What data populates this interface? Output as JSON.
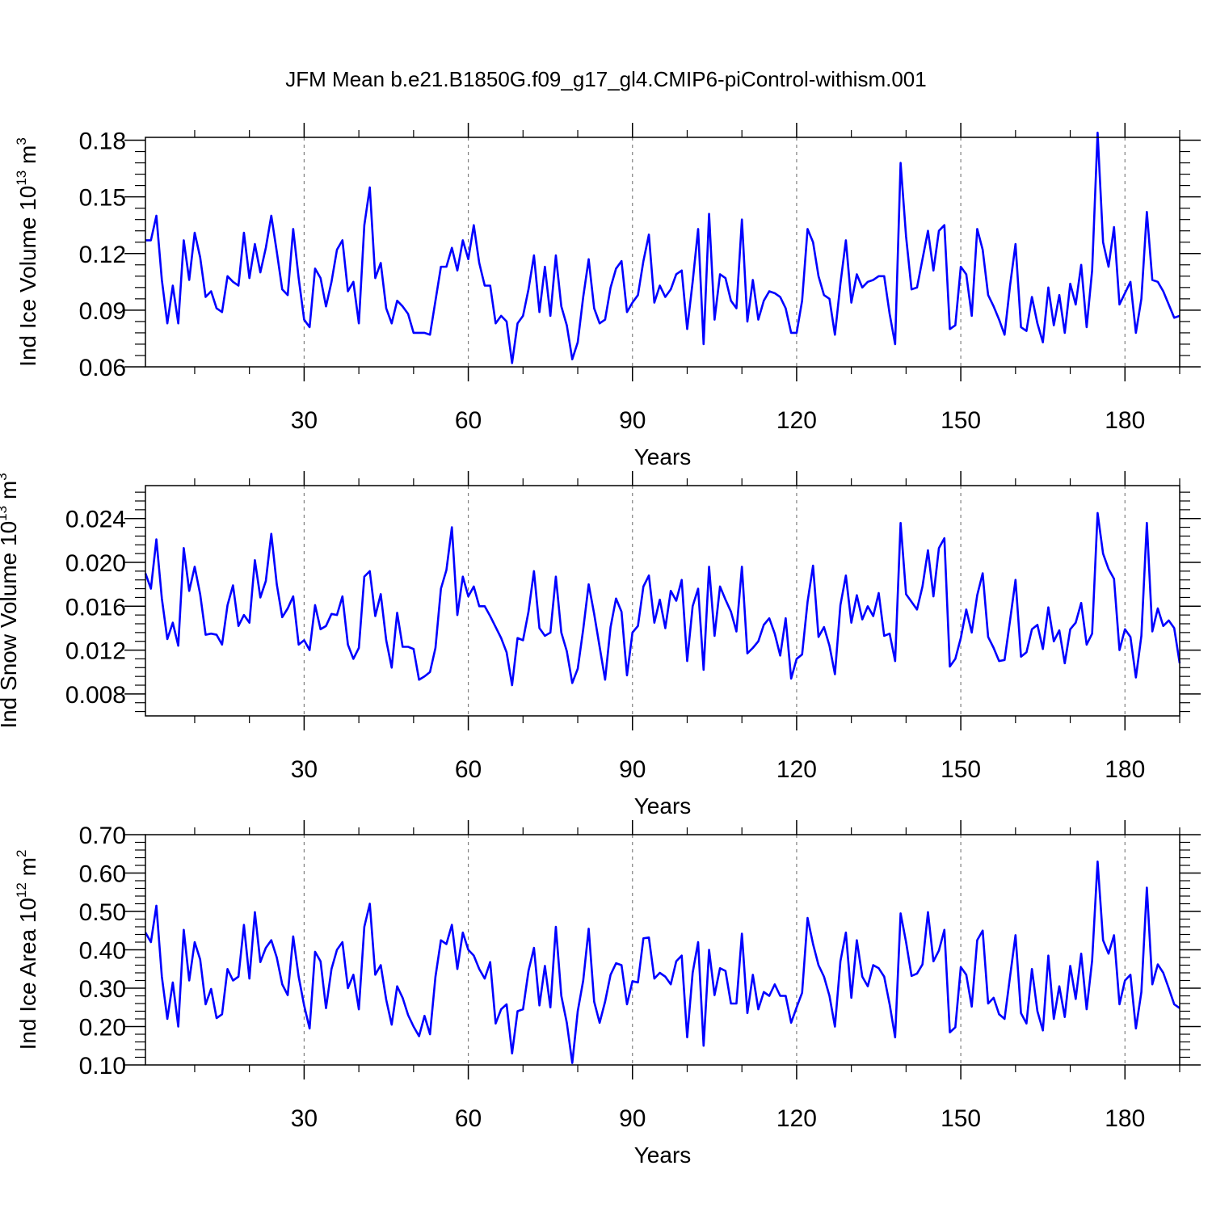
{
  "figure_title": "JFM Mean b.e21.B1850G.f09_g17_gl4.CMIP6-piControl-withism.001",
  "line_color": "#0000ff",
  "chart_data": [
    {
      "type": "line",
      "title": "JFM Mean b.e21.B1850G.f09_g17_gl4.CMIP6-piControl-withism.001",
      "xlabel": "Years",
      "ylabel": "Ind Ice Volume 10",
      "ylabel_exp": "13",
      "ylabel_unit": " m",
      "ylabel_unit_exp": "3",
      "xlim": [
        1,
        190
      ],
      "ylim": [
        0.06,
        0.1815
      ],
      "xticks": [
        30,
        60,
        90,
        120,
        150,
        180
      ],
      "xtick_labels": [
        "30",
        "60",
        "90",
        "120",
        "150",
        "180"
      ],
      "yticks": [
        0.06,
        0.09,
        0.12,
        0.15,
        0.18
      ],
      "ytick_labels": [
        "0.06",
        "0.09",
        "0.12",
        "0.15",
        "0.18"
      ],
      "grid": "vertical dashed at x ticks",
      "series": [
        {
          "name": "Ind Ice Volume",
          "values": [
            0.127,
            0.127,
            0.14,
            0.106,
            0.083,
            0.103,
            0.083,
            0.127,
            0.106,
            0.131,
            0.118,
            0.097,
            0.1,
            0.091,
            0.089,
            0.108,
            0.105,
            0.103,
            0.131,
            0.107,
            0.125,
            0.11,
            0.123,
            0.14,
            0.121,
            0.101,
            0.098,
            0.133,
            0.107,
            0.085,
            0.081,
            0.112,
            0.107,
            0.092,
            0.105,
            0.122,
            0.127,
            0.1,
            0.105,
            0.083,
            0.135,
            0.155,
            0.107,
            0.115,
            0.091,
            0.083,
            0.095,
            0.092,
            0.088,
            0.078,
            0.078,
            0.078,
            0.077,
            0.095,
            0.113,
            0.113,
            0.123,
            0.111,
            0.127,
            0.117,
            0.135,
            0.115,
            0.103,
            0.103,
            0.083,
            0.087,
            0.084,
            0.062,
            0.083,
            0.087,
            0.101,
            0.119,
            0.089,
            0.113,
            0.087,
            0.119,
            0.092,
            0.082,
            0.064,
            0.073,
            0.097,
            0.117,
            0.091,
            0.083,
            0.085,
            0.102,
            0.112,
            0.116,
            0.089,
            0.094,
            0.098,
            0.116,
            0.13,
            0.094,
            0.103,
            0.097,
            0.101,
            0.109,
            0.111,
            0.08,
            0.105,
            0.133,
            0.072,
            0.141,
            0.085,
            0.109,
            0.107,
            0.095,
            0.091,
            0.138,
            0.084,
            0.106,
            0.085,
            0.095,
            0.1,
            0.099,
            0.097,
            0.091,
            0.078,
            0.078,
            0.095,
            0.133,
            0.126,
            0.108,
            0.098,
            0.096,
            0.077,
            0.104,
            0.127,
            0.094,
            0.109,
            0.102,
            0.105,
            0.106,
            0.108,
            0.108,
            0.088,
            0.072,
            0.168,
            0.129,
            0.101,
            0.102,
            0.117,
            0.132,
            0.111,
            0.132,
            0.135,
            0.08,
            0.082,
            0.113,
            0.109,
            0.087,
            0.133,
            0.122,
            0.098,
            0.092,
            0.085,
            0.077,
            0.103,
            0.125,
            0.081,
            0.079,
            0.097,
            0.083,
            0.073,
            0.102,
            0.082,
            0.098,
            0.078,
            0.104,
            0.093,
            0.114,
            0.081,
            0.111,
            0.184,
            0.126,
            0.113,
            0.134,
            0.093,
            0.099,
            0.105,
            0.078,
            0.096,
            0.142,
            0.106,
            0.105,
            0.1,
            0.093,
            0.086,
            0.087
          ]
        }
      ]
    },
    {
      "type": "line",
      "xlabel": "Years",
      "ylabel": "Ind Snow Volume 10",
      "ylabel_exp": "13",
      "ylabel_unit": " m",
      "ylabel_unit_exp": "3",
      "xlim": [
        1,
        190
      ],
      "ylim": [
        0.006,
        0.027
      ],
      "xticks": [
        30,
        60,
        90,
        120,
        150,
        180
      ],
      "xtick_labels": [
        "30",
        "60",
        "90",
        "120",
        "150",
        "180"
      ],
      "yticks": [
        0.008,
        0.012,
        0.016,
        0.02,
        0.024
      ],
      "ytick_labels": [
        "0.008",
        "0.012",
        "0.016",
        "0.020",
        "0.024"
      ],
      "grid": "vertical dashed at x ticks",
      "series": [
        {
          "name": "Ind Snow Volume",
          "values": [
            0.019,
            0.0176,
            0.0221,
            0.0167,
            0.013,
            0.0145,
            0.0124,
            0.0213,
            0.0174,
            0.0196,
            0.0171,
            0.0134,
            0.0135,
            0.0134,
            0.0125,
            0.0161,
            0.0179,
            0.0142,
            0.0152,
            0.0145,
            0.0202,
            0.0168,
            0.0183,
            0.0226,
            0.018,
            0.015,
            0.0158,
            0.0169,
            0.0125,
            0.0129,
            0.012,
            0.0161,
            0.0139,
            0.0142,
            0.0153,
            0.0152,
            0.0169,
            0.0125,
            0.0112,
            0.0122,
            0.0187,
            0.0192,
            0.0151,
            0.0171,
            0.0129,
            0.0104,
            0.0154,
            0.0123,
            0.0123,
            0.0121,
            0.0093,
            0.0096,
            0.01,
            0.0122,
            0.0176,
            0.0193,
            0.0232,
            0.0152,
            0.0187,
            0.0169,
            0.0178,
            0.016,
            0.016,
            0.0151,
            0.0141,
            0.0131,
            0.0118,
            0.0088,
            0.0131,
            0.0129,
            0.0155,
            0.0192,
            0.014,
            0.0133,
            0.0136,
            0.0187,
            0.0136,
            0.0119,
            0.009,
            0.0103,
            0.0139,
            0.018,
            0.0153,
            0.0123,
            0.0093,
            0.0141,
            0.0167,
            0.0155,
            0.0097,
            0.0136,
            0.0142,
            0.0178,
            0.0188,
            0.0145,
            0.0166,
            0.014,
            0.0174,
            0.0165,
            0.0184,
            0.011,
            0.016,
            0.0176,
            0.0102,
            0.0196,
            0.0133,
            0.0178,
            0.0166,
            0.0155,
            0.0137,
            0.0196,
            0.0117,
            0.0122,
            0.0128,
            0.0143,
            0.0149,
            0.0135,
            0.0115,
            0.0149,
            0.0094,
            0.0112,
            0.0116,
            0.0164,
            0.0197,
            0.0132,
            0.0141,
            0.0124,
            0.0098,
            0.0161,
            0.0188,
            0.0145,
            0.017,
            0.0148,
            0.016,
            0.0151,
            0.0172,
            0.0133,
            0.0135,
            0.011,
            0.0236,
            0.0171,
            0.0164,
            0.0157,
            0.0178,
            0.0211,
            0.0169,
            0.0213,
            0.0222,
            0.0105,
            0.0112,
            0.0131,
            0.0157,
            0.0136,
            0.017,
            0.019,
            0.0132,
            0.0122,
            0.011,
            0.0111,
            0.0147,
            0.0184,
            0.0114,
            0.0118,
            0.0139,
            0.0143,
            0.0121,
            0.0159,
            0.0128,
            0.0138,
            0.0108,
            0.0139,
            0.0145,
            0.0163,
            0.0125,
            0.0135,
            0.0245,
            0.0208,
            0.0194,
            0.0185,
            0.012,
            0.0139,
            0.0132,
            0.0095,
            0.0133,
            0.0236,
            0.0137,
            0.0158,
            0.0142,
            0.0147,
            0.014,
            0.0108
          ]
        }
      ]
    },
    {
      "type": "line",
      "xlabel": "Years",
      "ylabel": "Ind Ice Area 10",
      "ylabel_exp": "12",
      "ylabel_unit": " m",
      "ylabel_unit_exp": "2",
      "xlim": [
        1,
        190
      ],
      "ylim": [
        0.1,
        0.7
      ],
      "xticks": [
        30,
        60,
        90,
        120,
        150,
        180
      ],
      "xtick_labels": [
        "30",
        "60",
        "90",
        "120",
        "150",
        "180"
      ],
      "yticks": [
        0.1,
        0.2,
        0.3,
        0.4,
        0.5,
        0.6,
        0.7
      ],
      "ytick_labels": [
        "0.10",
        "0.20",
        "0.30",
        "0.40",
        "0.50",
        "0.60",
        "0.70"
      ],
      "grid": "vertical dashed at x ticks",
      "series": [
        {
          "name": "Ind Ice Area",
          "values": [
            0.445,
            0.42,
            0.515,
            0.33,
            0.22,
            0.315,
            0.2,
            0.452,
            0.32,
            0.42,
            0.375,
            0.258,
            0.298,
            0.222,
            0.232,
            0.35,
            0.32,
            0.33,
            0.465,
            0.325,
            0.498,
            0.368,
            0.405,
            0.425,
            0.38,
            0.31,
            0.282,
            0.435,
            0.33,
            0.255,
            0.195,
            0.395,
            0.37,
            0.248,
            0.35,
            0.4,
            0.42,
            0.3,
            0.335,
            0.245,
            0.46,
            0.52,
            0.335,
            0.36,
            0.27,
            0.205,
            0.305,
            0.275,
            0.23,
            0.2,
            0.175,
            0.228,
            0.18,
            0.33,
            0.425,
            0.415,
            0.465,
            0.35,
            0.445,
            0.4,
            0.385,
            0.35,
            0.325,
            0.368,
            0.208,
            0.245,
            0.258,
            0.13,
            0.24,
            0.245,
            0.345,
            0.405,
            0.255,
            0.358,
            0.25,
            0.46,
            0.28,
            0.21,
            0.105,
            0.24,
            0.32,
            0.455,
            0.265,
            0.21,
            0.265,
            0.335,
            0.365,
            0.36,
            0.258,
            0.318,
            0.315,
            0.43,
            0.432,
            0.325,
            0.34,
            0.33,
            0.31,
            0.37,
            0.385,
            0.172,
            0.34,
            0.42,
            0.15,
            0.4,
            0.282,
            0.352,
            0.345,
            0.26,
            0.26,
            0.442,
            0.235,
            0.335,
            0.245,
            0.29,
            0.28,
            0.31,
            0.28,
            0.28,
            0.21,
            0.25,
            0.288,
            0.483,
            0.415,
            0.36,
            0.33,
            0.28,
            0.2,
            0.37,
            0.445,
            0.275,
            0.425,
            0.33,
            0.305,
            0.36,
            0.352,
            0.33,
            0.258,
            0.172,
            0.495,
            0.42,
            0.332,
            0.338,
            0.362,
            0.498,
            0.37,
            0.398,
            0.452,
            0.185,
            0.198,
            0.355,
            0.335,
            0.252,
            0.425,
            0.45,
            0.26,
            0.275,
            0.232,
            0.22,
            0.33,
            0.438,
            0.235,
            0.208,
            0.35,
            0.24,
            0.19,
            0.385,
            0.22,
            0.305,
            0.225,
            0.358,
            0.272,
            0.39,
            0.245,
            0.372,
            0.63,
            0.425,
            0.39,
            0.438,
            0.258,
            0.32,
            0.335,
            0.195,
            0.29,
            0.562,
            0.31,
            0.362,
            0.34,
            0.3,
            0.258,
            0.248
          ]
        }
      ]
    }
  ]
}
